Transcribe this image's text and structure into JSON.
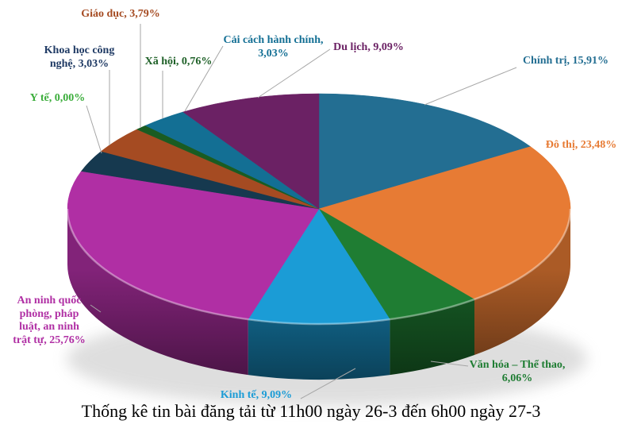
{
  "page": {
    "background": "#FFFFFF"
  },
  "chart_data": {
    "type": "pie",
    "projection": "3d",
    "title": "Thống kê tin bài đăng tải từ 11h00 ngày 26-3 đến 6h00 ngày 27-3",
    "legend_position": "none",
    "data_labels": "category-and-percent",
    "decimal_separator": ",",
    "start_angle_deg": 0,
    "direction": "clockwise",
    "leader_color": "#A6A6A6",
    "slices": [
      {
        "id": "chinh-tri",
        "category": "Chính trị",
        "value": 15.91,
        "display": "15,91%",
        "color": "#236E92",
        "label_lines": [
          "Chính trị, 15,91%"
        ]
      },
      {
        "id": "do-thi",
        "category": "Đô thị",
        "value": 23.48,
        "display": "23,48%",
        "color": "#E77B34",
        "label_lines": [
          "Đô thị, 23,48%"
        ]
      },
      {
        "id": "van-hoa",
        "category": "Văn hóa – Thể thao",
        "value": 6.06,
        "display": "6,06%",
        "color": "#1F7D33",
        "label_lines": [
          "Văn hóa – Thể thao,",
          "6,06%"
        ]
      },
      {
        "id": "kinh-te",
        "category": "Kinh tế",
        "value": 9.09,
        "display": "9,09%",
        "color": "#1B9CD6",
        "label_lines": [
          "Kinh tế, 9,09%"
        ]
      },
      {
        "id": "an-ninh",
        "category": "An ninh quốc phòng, pháp luật, an ninh trật tự",
        "value": 25.76,
        "display": "25,76%",
        "color": "#B02FA4",
        "label_lines": [
          "An ninh quốc",
          "phòng, pháp",
          "luật, an ninh",
          "trật tự, 25,76%"
        ]
      },
      {
        "id": "y-te",
        "category": "Y tế",
        "value": 0,
        "display": "0,00%",
        "color": "#3BAD3B",
        "label_lines": [
          "Y tế, 0,00%"
        ]
      },
      {
        "id": "khcn",
        "category": "Khoa học công nghệ",
        "value": 3.03,
        "display": "3,03%",
        "color": "#16394F",
        "label_color": "#1F3A64",
        "label_lines": [
          "Khoa học công",
          "nghệ, 3,03%"
        ]
      },
      {
        "id": "giao-duc",
        "category": "Giáo dục",
        "value": 3.79,
        "display": "3,79%",
        "color": "#A54B22",
        "label_lines": [
          "Giáo dục, 3,79%"
        ]
      },
      {
        "id": "xa-hoi",
        "category": "Xã hội",
        "value": 0.76,
        "display": "0,76%",
        "color": "#1A5C22",
        "label_color": "#1F6128",
        "label_lines": [
          "Xã hội, 0,76%"
        ]
      },
      {
        "id": "cai-cach",
        "category": "Cải cách hành chính",
        "value": 3.03,
        "display": "3,03%",
        "color": "#136F94",
        "label_lines": [
          "Cải cách hành chính,",
          "3,03%"
        ]
      },
      {
        "id": "du-lich",
        "category": "Du lịch",
        "value": 9.09,
        "display": "9,09%",
        "color": "#6B2164",
        "label_lines": [
          "Du lịch, 9,09%"
        ]
      }
    ]
  }
}
